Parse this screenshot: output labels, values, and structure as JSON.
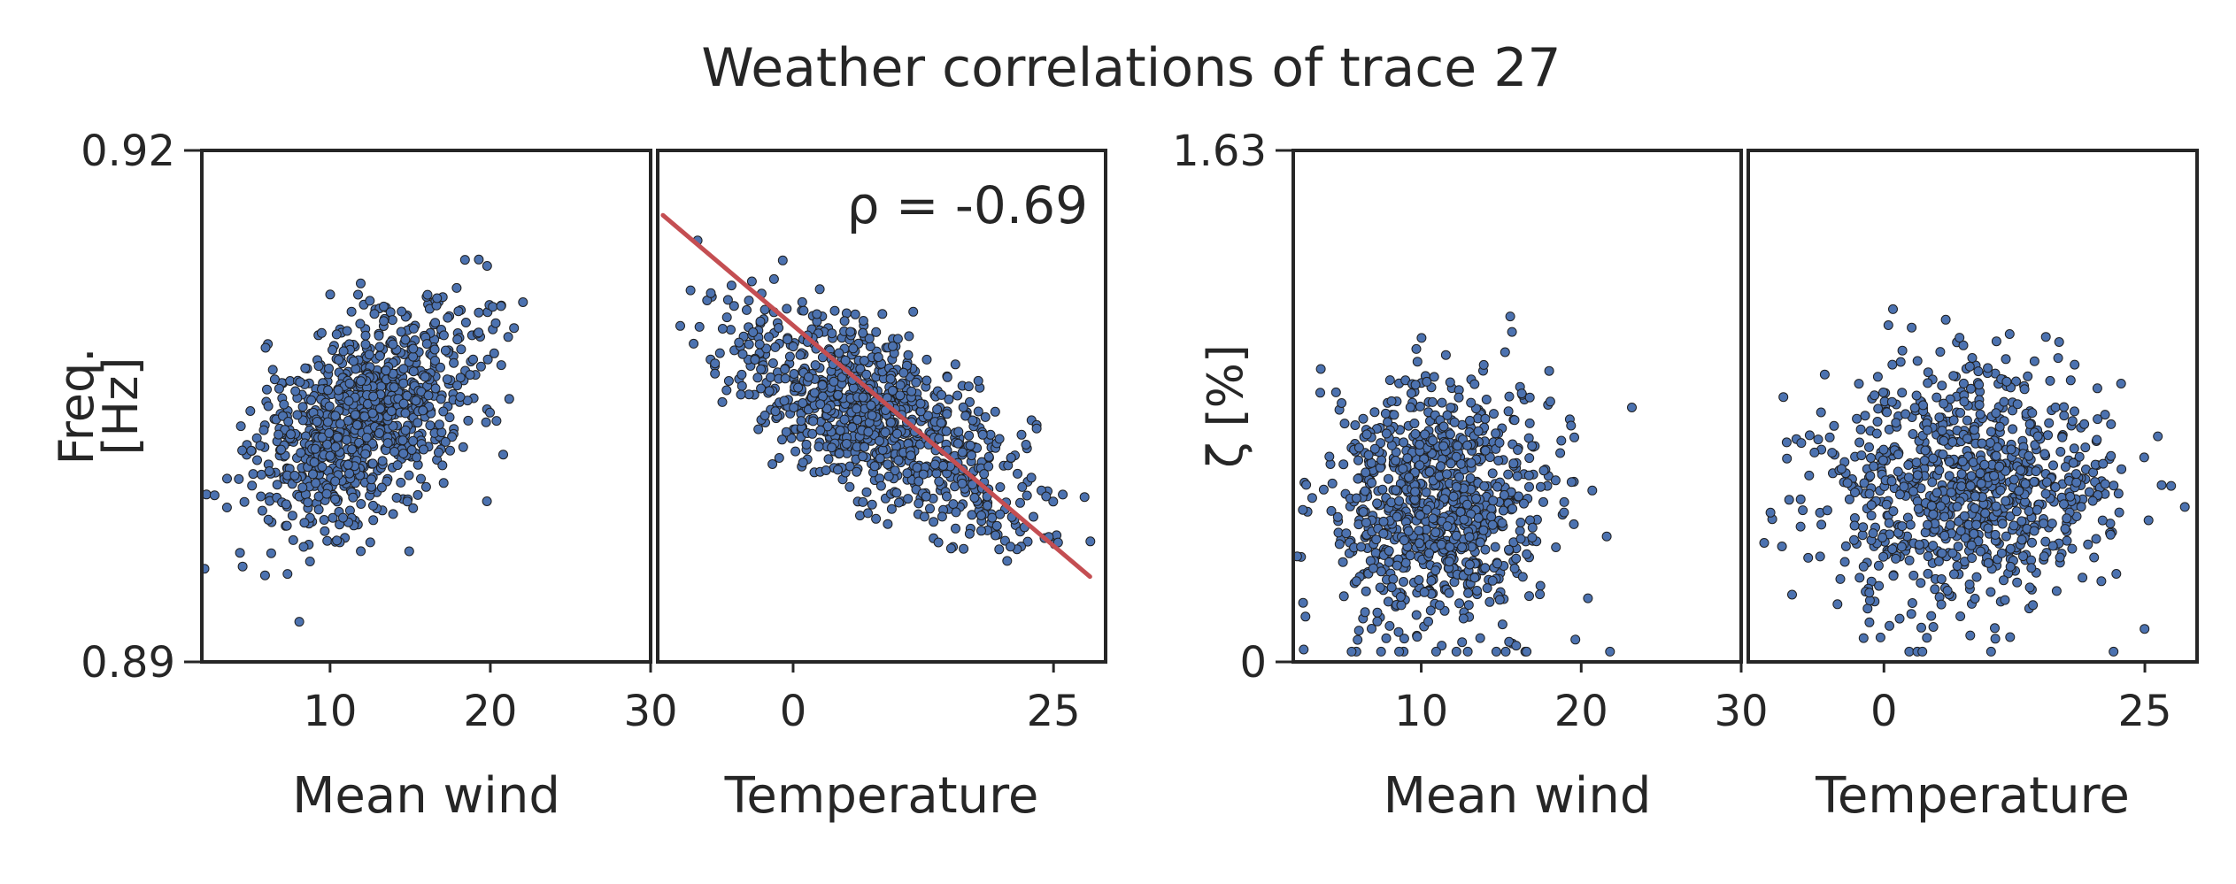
{
  "figure": {
    "title": "Weather correlations of trace 27"
  },
  "chart_data": [
    {
      "type": "scatter",
      "panel": "frequency vs mean wind",
      "ylabel_lines": [
        "Freq.",
        "[Hz]"
      ],
      "xlabel": "Mean wind",
      "xlim": [
        2,
        30
      ],
      "ylim": [
        0.89,
        0.92
      ],
      "yticks": [
        0.89,
        0.92
      ],
      "ytick_labels": [
        "0.89",
        "0.92"
      ],
      "xticks": [
        10,
        20,
        30
      ],
      "xtick_labels": [
        "10",
        "20",
        "30"
      ],
      "points": {
        "count": 900,
        "x_mean": 12,
        "x_sd": 3.5,
        "y_mean": 0.9042,
        "y_sd": 0.0033,
        "corr": 0.45
      },
      "marker_color": "#4c72b0"
    },
    {
      "type": "scatter",
      "panel": "frequency vs temperature",
      "xlabel": "Temperature",
      "xlim": [
        -13,
        30
      ],
      "ylim": [
        0.89,
        0.92
      ],
      "xticks": [
        0,
        25
      ],
      "xtick_labels": [
        "0",
        "25"
      ],
      "points": {
        "count": 900,
        "x_mean": 8,
        "x_sd": 7,
        "y_mean": 0.9042,
        "y_sd": 0.0033,
        "corr": -0.69
      },
      "annotation": "ρ = -0.69",
      "fit_line": {
        "x": [
          -12.5,
          28.5
        ],
        "y": [
          0.9162,
          0.895
        ],
        "color": "#c44e52"
      },
      "marker_color": "#4c72b0"
    },
    {
      "type": "scatter",
      "panel": "damping vs mean wind",
      "ylabel": "ζ [%]",
      "xlabel": "Mean wind",
      "xlim": [
        2,
        30
      ],
      "ylim": [
        0,
        1.63
      ],
      "yticks": [
        0,
        1.63
      ],
      "ytick_labels": [
        "0",
        "1.63"
      ],
      "xticks": [
        10,
        20,
        30
      ],
      "xtick_labels": [
        "10",
        "20",
        "30"
      ],
      "points": {
        "count": 900,
        "x_mean": 11,
        "x_sd": 3.5,
        "y_mean": 0.5,
        "y_sd": 0.2,
        "corr": 0.1
      },
      "marker_color": "#4c72b0"
    },
    {
      "type": "scatter",
      "panel": "damping vs temperature",
      "xlabel": "Temperature",
      "xlim": [
        -13,
        30
      ],
      "ylim": [
        0,
        1.63
      ],
      "xticks": [
        0,
        25
      ],
      "xtick_labels": [
        "0",
        "25"
      ],
      "points": {
        "count": 900,
        "x_mean": 8,
        "x_sd": 7,
        "y_mean": 0.55,
        "y_sd": 0.2,
        "corr": 0.0
      },
      "marker_color": "#4c72b0"
    }
  ]
}
